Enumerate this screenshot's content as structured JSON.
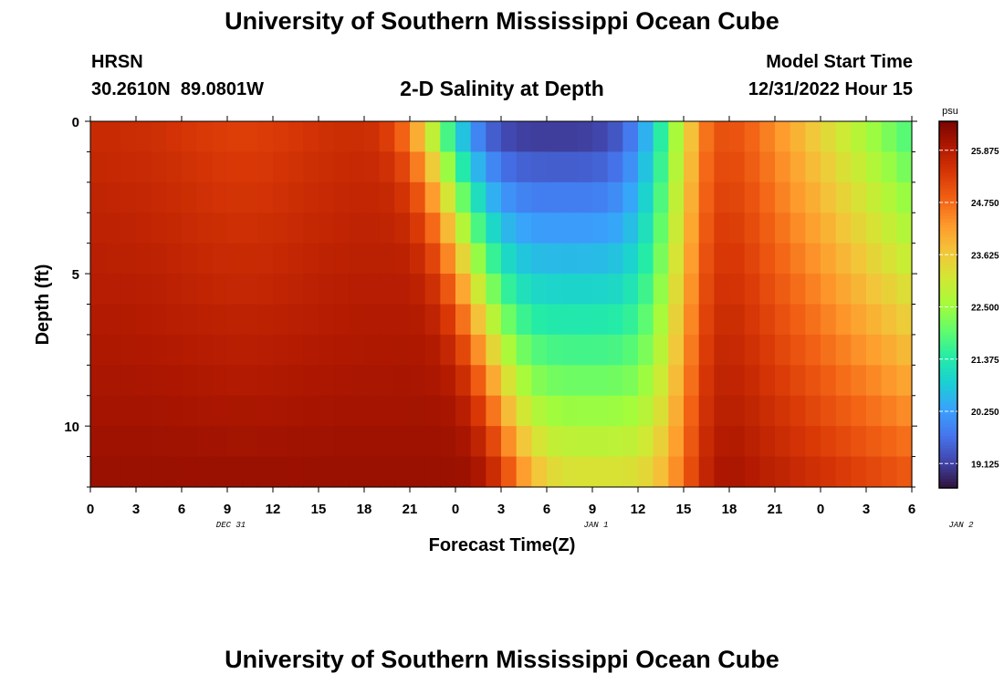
{
  "page": {
    "title_top": "University of Southern Mississippi Ocean Cube",
    "title_bottom": "University of Southern Mississippi Ocean Cube",
    "station_name": "HRSN",
    "station_coords": "30.2610N  89.0801W",
    "subtitle": "2-D Salinity at Depth",
    "model_start_label": "Model Start Time",
    "model_start_value": "12/31/2022 Hour 15"
  },
  "chart_data": {
    "type": "heatmap",
    "title": "2-D Salinity at Depth",
    "xlabel": "Forecast Time(Z)",
    "ylabel": "Depth (ft)",
    "colorbar_unit": "psu",
    "ylim": [
      0,
      12
    ],
    "y_reversed": true,
    "yticks": [
      "0",
      "5",
      "10"
    ],
    "xticks": [
      "0",
      "3",
      "6",
      "9",
      "12",
      "15",
      "18",
      "21",
      "0",
      "3",
      "6",
      "9",
      "12",
      "15",
      "18",
      "21",
      "0",
      "3",
      "6"
    ],
    "date_labels": [
      {
        "text": "DEC 31",
        "hour": 9
      },
      {
        "text": "JAN 1",
        "hour": 33
      },
      {
        "text": "JAN 2",
        "hour": 57
      }
    ],
    "xlim_hours": [
      0,
      54
    ],
    "colorbar_ticks": [
      "25.875",
      "24.750",
      "23.625",
      "22.500",
      "21.375",
      "20.250",
      "19.125"
    ],
    "colorbar_range": [
      18.6,
      26.5
    ],
    "colormap": [
      "#30123b",
      "#4145ab",
      "#4675ed",
      "#39a2fc",
      "#1bcfd4",
      "#24eca6",
      "#61fc6c",
      "#a4fc3b",
      "#d1e834",
      "#f3c63a",
      "#fe9b2d",
      "#f36315",
      "#d93806",
      "#b11901",
      "#7a0402"
    ],
    "depth_levels_ft": [
      0.5,
      1.5,
      2.5,
      3.5,
      4.5,
      5.5,
      6.5,
      7.5,
      8.5,
      9.5,
      10.5,
      11.5
    ],
    "time_step_hours": 1,
    "salinity_model": {
      "surface_base": 25.6,
      "bottom_base": 26.2,
      "fresh_center_hour_surface": 30.5,
      "fresh_center_hour_bottom": 33.5,
      "fresh_halfwidth_surface_hours": 8.5,
      "fresh_halfwidth_bottom_hours": 6.0,
      "fresh_min_surface": 18.9,
      "fresh_min_bottom": 23.4,
      "late_surface": 21.4,
      "late_bottom": 25.0
    }
  }
}
